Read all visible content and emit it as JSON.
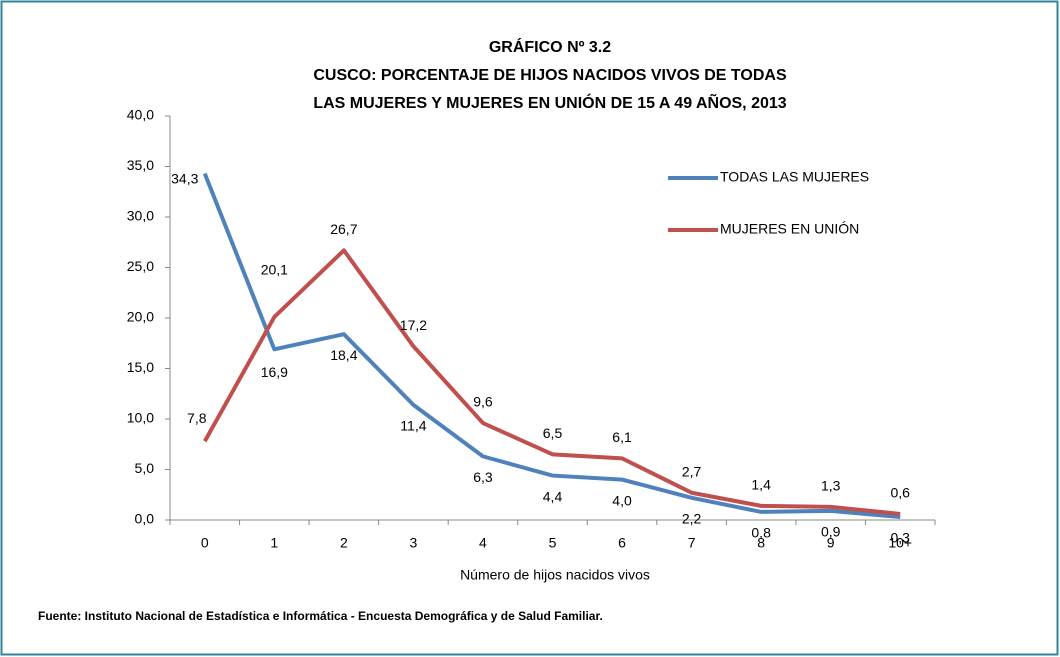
{
  "chart_data": {
    "type": "line",
    "title": [
      "GRÁFICO Nº 3.2",
      "CUSCO: PORCENTAJE DE HIJOS NACIDOS VIVOS DE TODAS",
      "LAS MUJERES Y MUJERES EN UNIÓN DE 15 A 49 AÑOS, 2013"
    ],
    "x_label": "Número de hijos nacidos vivos",
    "source": "Fuente: Instituto Nacional de Estadística e Informática - Encuesta Demográfica y de Salud Familiar.",
    "categories": [
      "0",
      "1",
      "2",
      "3",
      "4",
      "5",
      "6",
      "7",
      "8",
      "9",
      "10+"
    ],
    "series": [
      {
        "name": "TODAS LAS MUJERES",
        "color": "#4f81bd",
        "values": [
          34.3,
          16.9,
          18.4,
          11.4,
          6.3,
          4.4,
          4.0,
          2.2,
          0.8,
          0.9,
          0.3
        ],
        "value_labels": [
          "34,3",
          "16,9",
          "18,4",
          "11,4",
          "6,3",
          "4,4",
          "4,0",
          "2,2",
          "0,8",
          "0,9",
          "0,3"
        ]
      },
      {
        "name": "MUJERES EN UNIÓN",
        "color": "#c0504d",
        "values": [
          7.8,
          20.1,
          26.7,
          17.2,
          9.6,
          6.5,
          6.1,
          2.7,
          1.4,
          1.3,
          0.6
        ],
        "value_labels": [
          "7,8",
          "20,1",
          "26,7",
          "17,2",
          "9,6",
          "6,5",
          "6,1",
          "2,7",
          "1,4",
          "1,3",
          "0,6"
        ]
      }
    ],
    "ylim": [
      0,
      40
    ],
    "yticks": [
      {
        "value": 0,
        "label": "0,0"
      },
      {
        "value": 5,
        "label": "5,0"
      },
      {
        "value": 10,
        "label": "10,0"
      },
      {
        "value": 15,
        "label": "15,0"
      },
      {
        "value": 20,
        "label": "20,0"
      },
      {
        "value": 25,
        "label": "25,0"
      },
      {
        "value": 30,
        "label": "30,0"
      },
      {
        "value": 35,
        "label": "35,0"
      },
      {
        "value": 40,
        "label": "40,0"
      }
    ],
    "grid": false,
    "legend": "upper right"
  }
}
